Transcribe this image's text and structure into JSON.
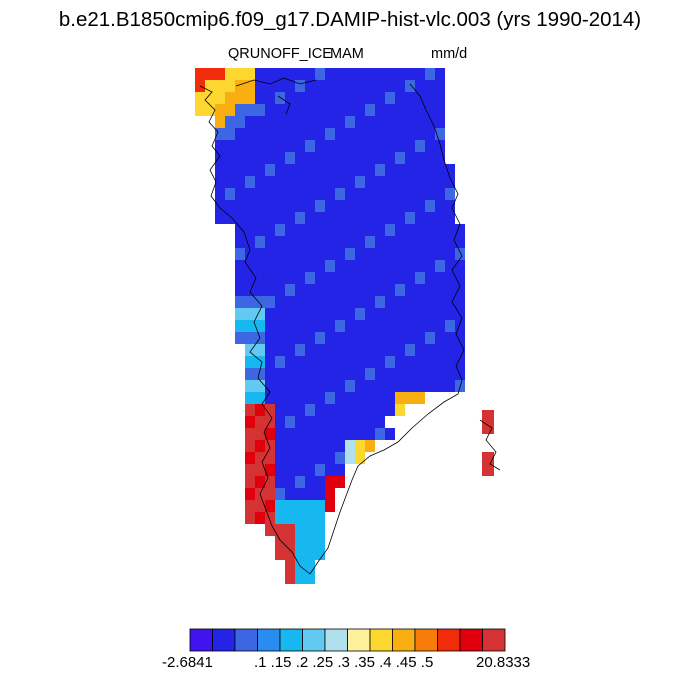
{
  "chart_data": {
    "type": "heatmap",
    "title": "b.e21.B1850cmip6.f09_g17.DAMIP-hist-vlc.003 (yrs 1990-2014)",
    "variable": "QRUNOFF_ICE",
    "season": "MAM",
    "units": "mm/d",
    "region": "Greenland",
    "colorbar": {
      "colors": [
        "#3f14ef",
        "#2424e6",
        "#3d67e2",
        "#2a8cf0",
        "#17b7f0",
        "#62c9f0",
        "#b0e0ee",
        "#fdf29b",
        "#fdd72f",
        "#f9ae12",
        "#f87c0a",
        "#f02c0a",
        "#e0000d",
        "#d53234"
      ],
      "labels": [
        "-2.6841",
        ".1 .15 .2 .25 .3 .35 .4 .45 .5",
        "20.8333"
      ]
    },
    "values_summary": {
      "ice_sheet_interior": "low (dark blue, < 0.1 mm/d)",
      "southwest_margin": "high (red/orange, up to 20.8333 mm/d)",
      "southeast_margin": "moderate to high (yellow/orange/red)",
      "northwest_corner": "high (orange/red)"
    }
  }
}
